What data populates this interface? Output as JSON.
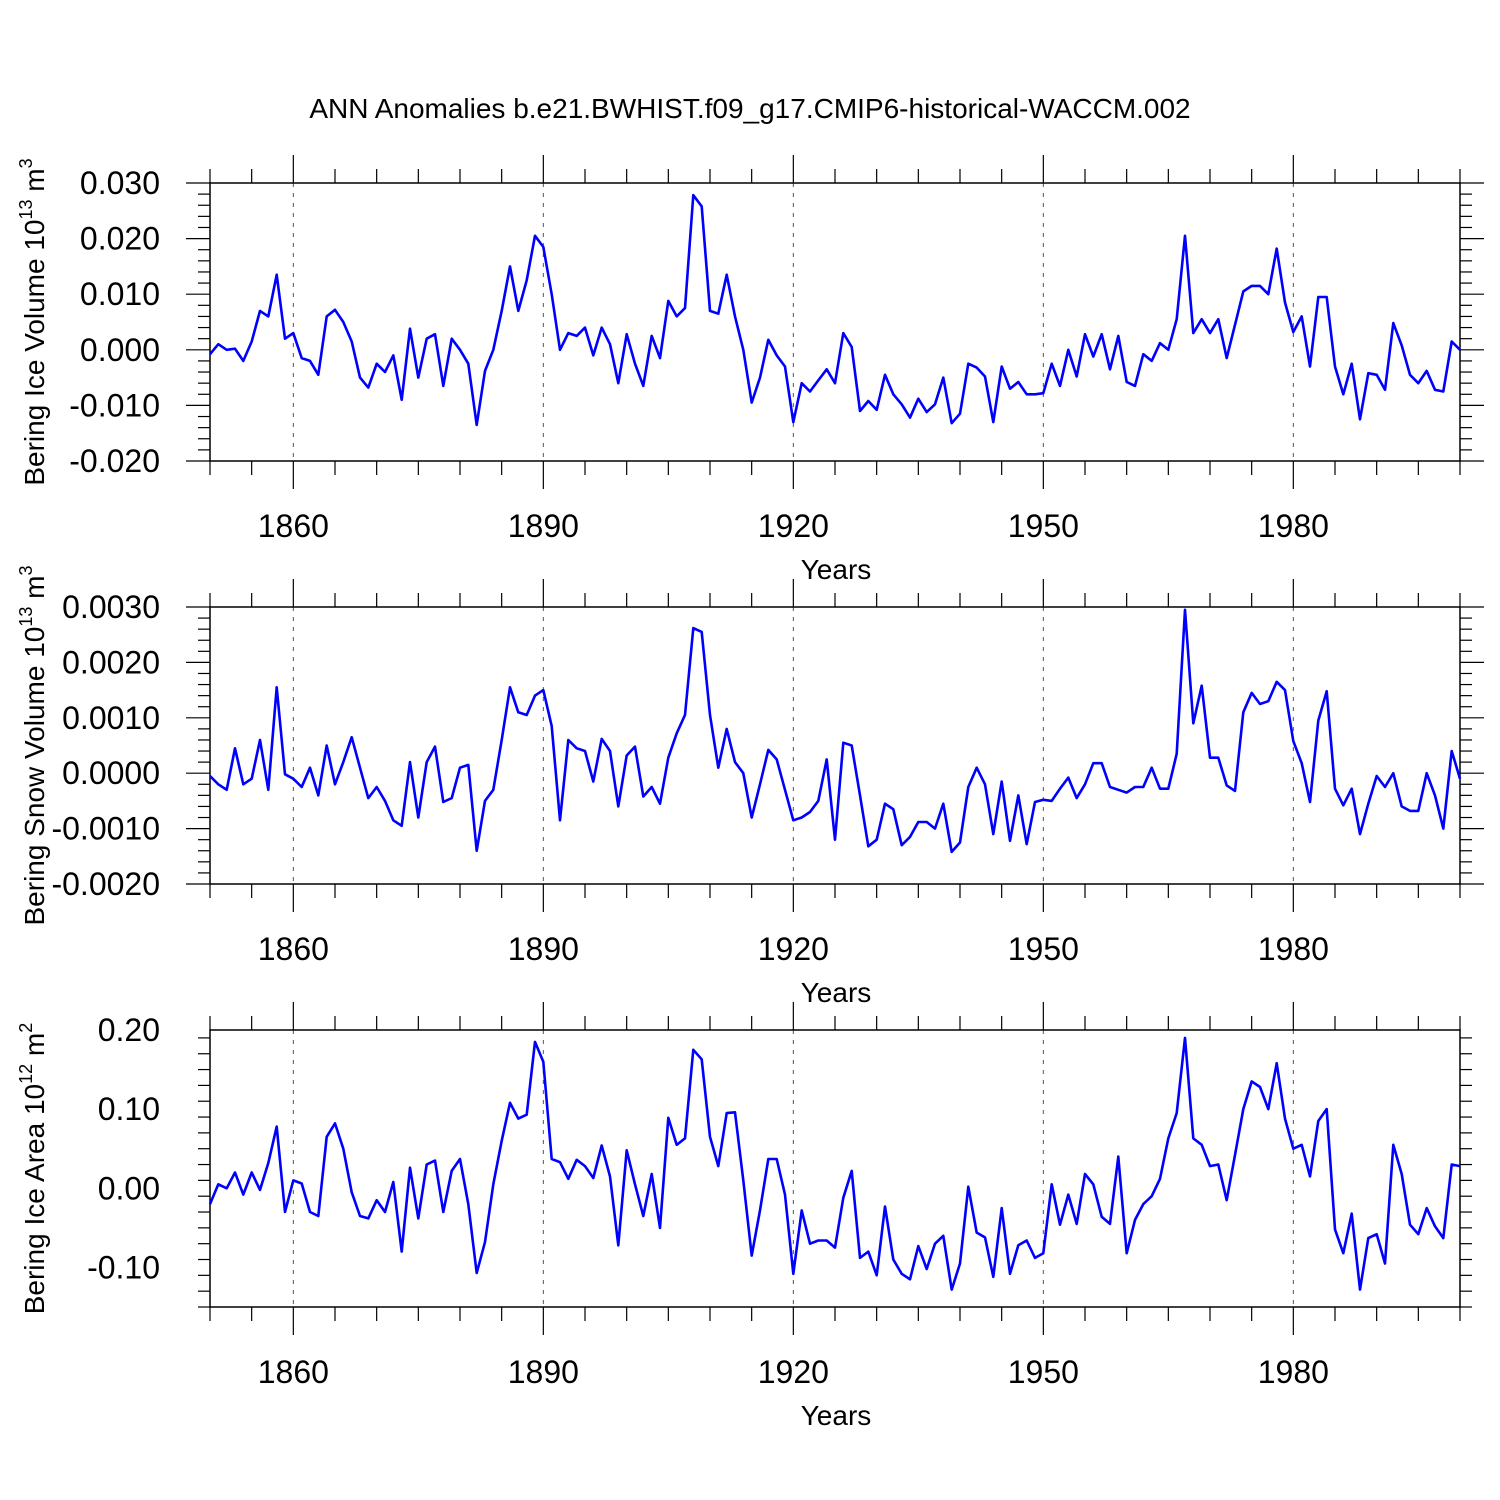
{
  "title": "ANN Anomalies b.e21.BWHIST.f09_g17.CMIP6-historical-WACCM.002",
  "series_color": "#0000ff",
  "chart_data": [
    {
      "type": "line",
      "ylabel_main": "Bering Ice Volume 10",
      "ylabel_exp": "13",
      "ylabel_unit": " m",
      "ylabel_unit_exp": "3",
      "xlabel": "Years",
      "xlim": [
        1850,
        2000
      ],
      "ylim": [
        -0.02,
        0.03
      ],
      "xticks": [
        1860,
        1890,
        1920,
        1950,
        1980
      ],
      "xtick_labels": [
        "1860",
        "1890",
        "1920",
        "1950",
        "1980"
      ],
      "yticks": [
        -0.02,
        -0.01,
        0.0,
        0.01,
        0.02,
        0.03
      ],
      "ytick_labels": [
        "-0.020",
        "-0.010",
        "0.000",
        "0.010",
        "0.020",
        "0.030"
      ],
      "x_start": 1850,
      "values": [
        -0.0008,
        0.001,
        0.0,
        0.0002,
        -0.002,
        0.0015,
        0.007,
        0.006,
        0.0135,
        0.002,
        0.003,
        -0.0015,
        -0.002,
        -0.0045,
        0.006,
        0.0072,
        0.005,
        0.0015,
        -0.005,
        -0.0068,
        -0.0025,
        -0.004,
        -0.001,
        -0.009,
        0.0038,
        -0.005,
        0.002,
        0.0028,
        -0.0065,
        0.002,
        0.0,
        -0.0025,
        -0.0135,
        -0.0038,
        0.0,
        0.007,
        0.015,
        0.007,
        0.0125,
        0.0205,
        0.0185,
        0.01,
        0.0,
        0.003,
        0.0025,
        0.004,
        -0.001,
        0.004,
        0.001,
        -0.006,
        0.0028,
        -0.0025,
        -0.0065,
        0.0025,
        -0.0015,
        0.0088,
        0.006,
        0.0075,
        0.0278,
        0.0258,
        0.007,
        0.0065,
        0.0135,
        0.006,
        0.0,
        -0.0095,
        -0.005,
        0.0018,
        -0.001,
        -0.003,
        -0.013,
        -0.006,
        -0.0075,
        -0.0055,
        -0.0035,
        -0.006,
        0.003,
        0.0005,
        -0.011,
        -0.0092,
        -0.0108,
        -0.0045,
        -0.008,
        -0.0098,
        -0.0122,
        -0.0088,
        -0.0112,
        -0.0098,
        -0.005,
        -0.0132,
        -0.0115,
        -0.0025,
        -0.0032,
        -0.0048,
        -0.013,
        -0.003,
        -0.007,
        -0.0058,
        -0.008,
        -0.008,
        -0.0078,
        -0.0025,
        -0.0065,
        0.0,
        -0.0048,
        0.0028,
        -0.0012,
        0.0028,
        -0.0035,
        0.0025,
        -0.0058,
        -0.0065,
        -0.0008,
        -0.002,
        0.0012,
        0.0,
        0.0055,
        0.0205,
        0.003,
        0.0055,
        0.003,
        0.0055,
        -0.0015,
        0.0045,
        0.0105,
        0.0115,
        0.0115,
        0.01,
        0.0182,
        0.0085,
        0.0032,
        0.006,
        -0.003,
        0.0095,
        0.0095,
        -0.003,
        -0.008,
        -0.0025,
        -0.0125,
        -0.0042,
        -0.0045,
        -0.0072,
        0.0048,
        0.0008,
        -0.0045,
        -0.006,
        -0.0038,
        -0.0072,
        -0.0075,
        0.0015,
        0.0
      ]
    },
    {
      "type": "line",
      "ylabel_main": "Bering Snow Volume 10",
      "ylabel_exp": "13",
      "ylabel_unit": " m",
      "ylabel_unit_exp": "3",
      "xlabel": "Years",
      "xlim": [
        1850,
        2000
      ],
      "ylim": [
        -0.002,
        0.003
      ],
      "xticks": [
        1860,
        1890,
        1920,
        1950,
        1980
      ],
      "xtick_labels": [
        "1860",
        "1890",
        "1920",
        "1950",
        "1980"
      ],
      "yticks": [
        -0.002,
        -0.001,
        0.0,
        0.001,
        0.002,
        0.003
      ],
      "ytick_labels": [
        "-0.0020",
        "-0.0010",
        "0.0000",
        "0.0010",
        "0.0020",
        "0.0030"
      ],
      "x_start": 1850,
      "values": [
        -5e-05,
        -0.0002,
        -0.0003,
        0.00045,
        -0.0002,
        -0.0001,
        0.0006,
        -0.0003,
        0.00155,
        -2e-05,
        -0.0001,
        -0.00025,
        0.0001,
        -0.0004,
        0.0005,
        -0.0002,
        0.0002,
        0.00065,
        0.0001,
        -0.00045,
        -0.00025,
        -0.0005,
        -0.00085,
        -0.00095,
        0.0002,
        -0.0008,
        0.0002,
        0.00048,
        -0.00052,
        -0.00045,
        0.0001,
        0.00015,
        -0.0014,
        -0.0005,
        -0.0003,
        0.0006,
        0.00155,
        0.0011,
        0.00105,
        0.0014,
        0.0015,
        0.00085,
        -0.00085,
        0.0006,
        0.00045,
        0.0004,
        -0.00015,
        0.00062,
        0.0004,
        -0.0006,
        0.00032,
        0.00048,
        -0.00042,
        -0.00025,
        -0.00055,
        0.00028,
        0.00072,
        0.00105,
        0.00262,
        0.00255,
        0.00105,
        0.0001,
        0.0008,
        0.0002,
        0.0,
        -0.0008,
        -0.0002,
        0.00042,
        0.00025,
        -0.0003,
        -0.00085,
        -0.0008,
        -0.0007,
        -0.0005,
        0.00025,
        -0.0012,
        0.00055,
        0.0005,
        -0.0004,
        -0.00132,
        -0.0012,
        -0.00055,
        -0.00065,
        -0.0013,
        -0.00115,
        -0.00088,
        -0.00088,
        -0.001,
        -0.00055,
        -0.00142,
        -0.00125,
        -0.00025,
        0.0001,
        -0.0002,
        -0.0011,
        -0.00015,
        -0.00122,
        -0.0004,
        -0.00128,
        -0.00052,
        -0.00048,
        -0.0005,
        -0.00028,
        -8e-05,
        -0.00045,
        -0.0002,
        0.00018,
        0.00018,
        -0.00025,
        -0.0003,
        -0.00035,
        -0.00025,
        -0.00025,
        0.0001,
        -0.00028,
        -0.00028,
        0.00035,
        0.00295,
        0.0009,
        0.00158,
        0.00028,
        0.00028,
        -0.00022,
        -0.00032,
        0.0011,
        0.00145,
        0.00125,
        0.0013,
        0.00165,
        0.0015,
        0.00058,
        0.00018,
        -0.00052,
        0.00095,
        0.00148,
        -0.00028,
        -0.00058,
        -0.00028,
        -0.0011,
        -0.00055,
        -5e-05,
        -0.00025,
        0.0,
        -0.0006,
        -0.00068,
        -0.00068,
        0.0,
        -0.0004,
        -0.001,
        0.0004,
        -0.0001
      ]
    },
    {
      "type": "line",
      "ylabel_main": "Bering Ice Area 10",
      "ylabel_exp": "12",
      "ylabel_unit": " m",
      "ylabel_unit_exp": "2",
      "xlabel": "Years",
      "xlim": [
        1850,
        2000
      ],
      "ylim": [
        -0.15,
        0.2
      ],
      "xticks": [
        1860,
        1890,
        1920,
        1950,
        1980
      ],
      "xtick_labels": [
        "1860",
        "1890",
        "1920",
        "1950",
        "1980"
      ],
      "yticks": [
        -0.1,
        0.0,
        0.1,
        0.2
      ],
      "ytick_labels": [
        "-0.10",
        "0.00",
        "0.10",
        "0.20"
      ],
      "x_start": 1850,
      "values": [
        -0.02,
        0.005,
        0.0,
        0.02,
        -0.008,
        0.02,
        -0.002,
        0.032,
        0.078,
        -0.03,
        0.01,
        0.006,
        -0.03,
        -0.035,
        0.065,
        0.082,
        0.05,
        -0.005,
        -0.035,
        -0.038,
        -0.015,
        -0.03,
        0.008,
        -0.08,
        0.026,
        -0.038,
        0.03,
        0.035,
        -0.03,
        0.022,
        0.037,
        -0.02,
        -0.107,
        -0.068,
        0.005,
        0.06,
        0.108,
        0.088,
        0.093,
        0.185,
        0.16,
        0.037,
        0.033,
        0.012,
        0.036,
        0.028,
        0.013,
        0.054,
        0.015,
        -0.072,
        0.048,
        0.005,
        -0.035,
        0.018,
        -0.05,
        0.089,
        0.055,
        0.063,
        0.175,
        0.163,
        0.065,
        0.028,
        0.095,
        0.096,
        0.01,
        -0.085,
        -0.028,
        0.037,
        0.037,
        -0.008,
        -0.108,
        -0.028,
        -0.07,
        -0.066,
        -0.066,
        -0.075,
        -0.012,
        0.022,
        -0.088,
        -0.08,
        -0.11,
        -0.023,
        -0.09,
        -0.108,
        -0.115,
        -0.073,
        -0.102,
        -0.07,
        -0.06,
        -0.128,
        -0.095,
        0.002,
        -0.056,
        -0.062,
        -0.112,
        -0.025,
        -0.108,
        -0.072,
        -0.066,
        -0.088,
        -0.082,
        0.005,
        -0.046,
        -0.008,
        -0.045,
        0.018,
        0.005,
        -0.036,
        -0.045,
        0.04,
        -0.082,
        -0.04,
        -0.02,
        -0.01,
        0.012,
        0.063,
        0.095,
        0.19,
        0.063,
        0.055,
        0.028,
        0.03,
        -0.015,
        0.042,
        0.1,
        0.135,
        0.128,
        0.1,
        0.158,
        0.088,
        0.05,
        0.055,
        0.015,
        0.085,
        0.1,
        -0.052,
        -0.082,
        -0.032,
        -0.128,
        -0.063,
        -0.058,
        -0.095,
        0.055,
        0.018,
        -0.046,
        -0.058,
        -0.025,
        -0.048,
        -0.063,
        0.03,
        0.028
      ]
    }
  ]
}
